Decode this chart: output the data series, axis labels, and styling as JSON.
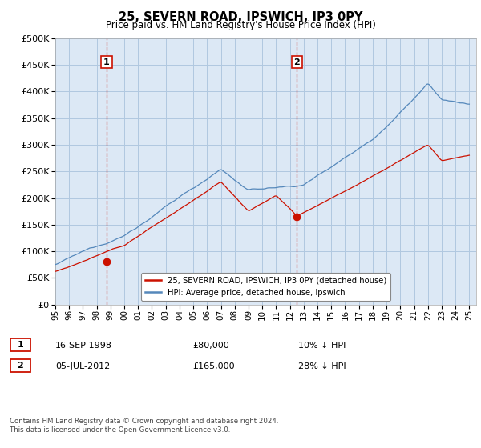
{
  "title": "25, SEVERN ROAD, IPSWICH, IP3 0PY",
  "subtitle": "Price paid vs. HM Land Registry's House Price Index (HPI)",
  "ylim": [
    0,
    500000
  ],
  "yticks": [
    0,
    50000,
    100000,
    150000,
    200000,
    250000,
    300000,
    350000,
    400000,
    450000,
    500000
  ],
  "background_color": "#ffffff",
  "plot_bg_color": "#dce8f5",
  "grid_color": "#b0c8e0",
  "hpi_color": "#5588bb",
  "price_color": "#cc1100",
  "vline_color": "#cc1100",
  "transaction1": {
    "date_num": 1998.71,
    "price": 80000,
    "label": "1",
    "date_str": "16-SEP-1998",
    "pct": "10%"
  },
  "transaction2": {
    "date_num": 2012.51,
    "price": 165000,
    "label": "2",
    "date_str": "05-JUL-2012",
    "pct": "28%"
  },
  "legend_entry1": "25, SEVERN ROAD, IPSWICH, IP3 0PY (detached house)",
  "legend_entry2": "HPI: Average price, detached house, Ipswich",
  "footnote": "Contains HM Land Registry data © Crown copyright and database right 2024.\nThis data is licensed under the Open Government Licence v3.0.",
  "xmin": 1995.0,
  "xmax": 2025.5,
  "xtick_labels": [
    "95",
    "96",
    "97",
    "98",
    "99",
    "00",
    "01",
    "02",
    "03",
    "04",
    "05",
    "06",
    "07",
    "08",
    "09",
    "10",
    "11",
    "12",
    "13",
    "14",
    "15",
    "16",
    "17",
    "18",
    "19",
    "20",
    "21",
    "22",
    "23",
    "24",
    "25"
  ],
  "xtick_vals": [
    1995,
    1996,
    1997,
    1998,
    1999,
    2000,
    2001,
    2002,
    2003,
    2004,
    2005,
    2006,
    2007,
    2008,
    2009,
    2010,
    2011,
    2012,
    2013,
    2014,
    2015,
    2016,
    2017,
    2018,
    2019,
    2020,
    2021,
    2022,
    2023,
    2024,
    2025
  ]
}
